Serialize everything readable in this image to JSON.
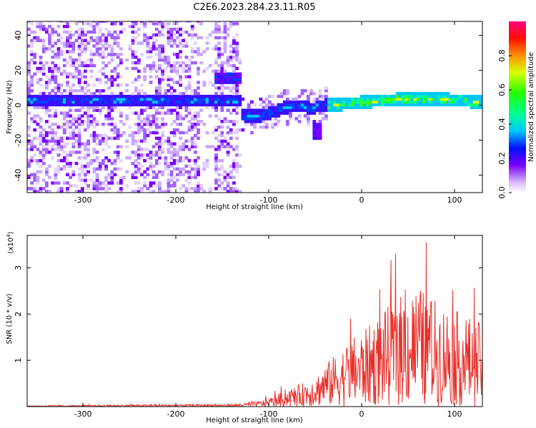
{
  "title": "C2E6.2023.284.23.11.R05",
  "chart_data": [
    {
      "type": "heatmap",
      "xlabel": "Height of straight line (km)",
      "ylabel": "Frequency (Hz)",
      "xlim": [
        -360,
        130
      ],
      "ylim": [
        -50,
        48
      ],
      "x_ticks": [
        -300,
        -200,
        -100,
        0,
        100
      ],
      "y_ticks": [
        -40,
        -20,
        0,
        20,
        40
      ],
      "colorbar": {
        "label": "Normalized spectral amplitude",
        "range": [
          0,
          1
        ],
        "ticks": [
          "0.0",
          "0.2",
          "0.4",
          "0.6",
          "0.8"
        ]
      },
      "grid": false
    },
    {
      "type": "line",
      "xlabel": "Height of straight line (km)",
      "ylabel": "SNR (10 * v/v)",
      "y_scale_label": "(x10",
      "y_scale_exp": "4",
      "xlim": [
        -360,
        130
      ],
      "ylim": [
        0,
        3.7
      ],
      "x_ticks": [
        -300,
        -200,
        -100,
        0,
        100
      ],
      "y_ticks": [
        1,
        2,
        3
      ],
      "series": [
        {
          "color": "#e8302a",
          "x": [
            -360,
            -300,
            -250,
            -200,
            -150,
            -130,
            -110,
            -100,
            -90,
            -80,
            -70,
            -60,
            -50,
            -40,
            -30,
            -20,
            -10,
            0,
            10,
            20,
            30,
            40,
            50,
            60,
            70,
            80,
            90,
            100,
            110,
            120,
            130
          ],
          "y": [
            0.02,
            0.03,
            0.04,
            0.05,
            0.05,
            0.06,
            0.12,
            0.18,
            0.28,
            0.35,
            0.45,
            0.55,
            0.65,
            0.9,
            1.1,
            1.3,
            1.5,
            1.6,
            1.8,
            2.0,
            2.2,
            2.4,
            2.5,
            2.6,
            2.5,
            2.3,
            2.2,
            2.1,
            2.0,
            1.9,
            1.8
          ]
        }
      ]
    }
  ]
}
